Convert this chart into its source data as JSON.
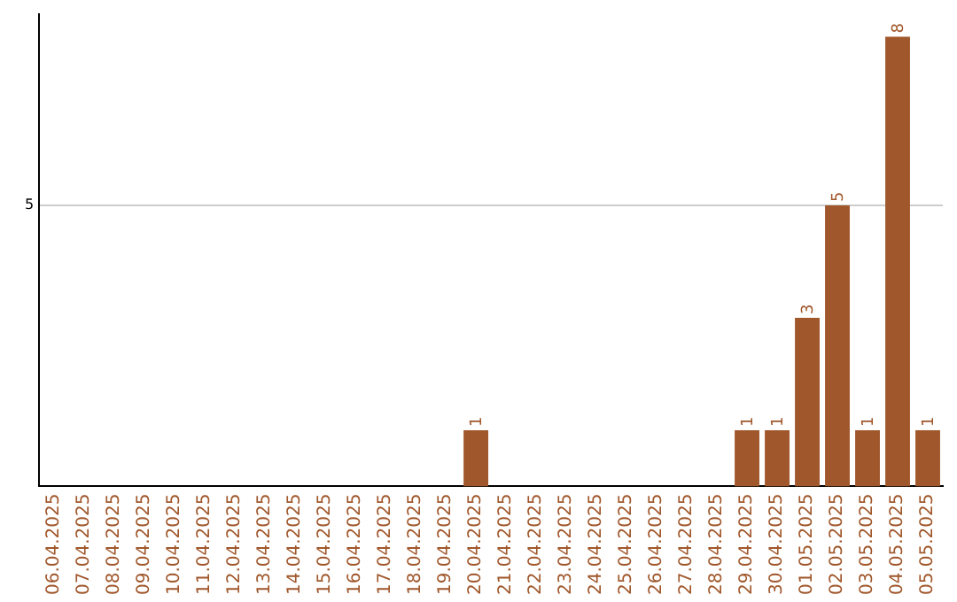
{
  "chart_data": {
    "type": "bar",
    "categories": [
      "06.04.2025",
      "07.04.2025",
      "08.04.2025",
      "09.04.2025",
      "10.04.2025",
      "11.04.2025",
      "12.04.2025",
      "13.04.2025",
      "14.04.2025",
      "15.04.2025",
      "16.04.2025",
      "17.04.2025",
      "18.04.2025",
      "19.04.2025",
      "20.04.2025",
      "21.04.2025",
      "22.04.2025",
      "23.04.2025",
      "24.04.2025",
      "25.04.2025",
      "26.04.2025",
      "27.04.2025",
      "28.04.2025",
      "29.04.2025",
      "30.04.2025",
      "01.05.2025",
      "02.05.2025",
      "03.05.2025",
      "04.05.2025",
      "05.05.2025"
    ],
    "values": [
      null,
      null,
      null,
      null,
      null,
      null,
      null,
      null,
      null,
      null,
      null,
      null,
      null,
      null,
      1,
      null,
      null,
      null,
      null,
      null,
      null,
      null,
      null,
      1,
      1,
      3,
      5,
      1,
      8,
      1
    ],
    "data_labels": true,
    "color": "#a0572b",
    "ylim": [
      0,
      8.4
    ],
    "yticks": [
      5
    ],
    "grid": "y",
    "legend": false
  }
}
